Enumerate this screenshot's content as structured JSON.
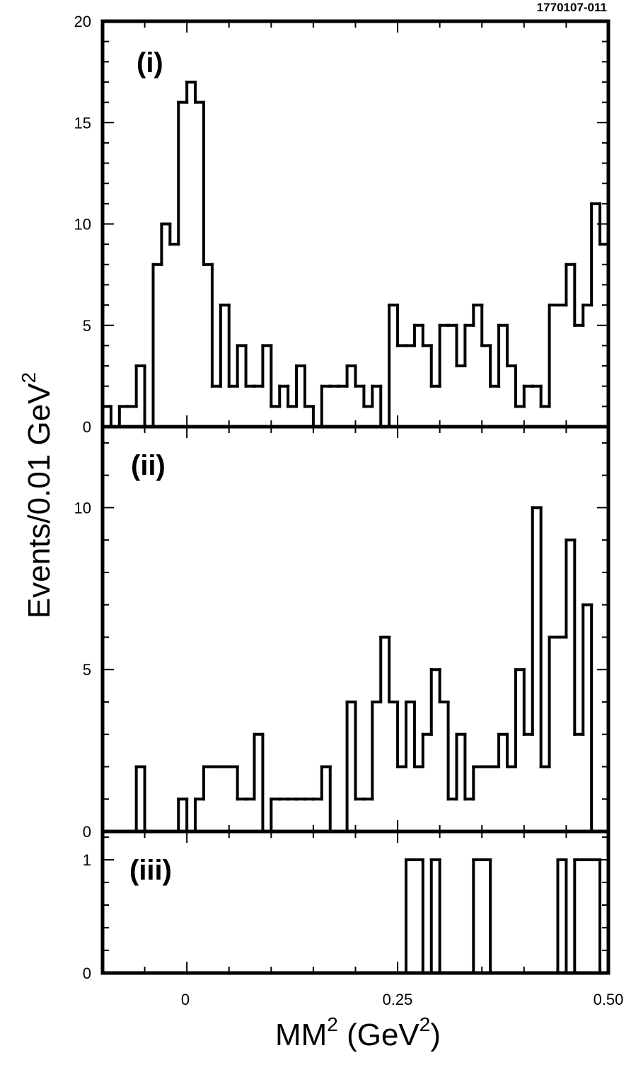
{
  "figure_id": "1770107-011",
  "chart_data": [
    {
      "type": "histogram",
      "panel_label": "(i)",
      "xlim": [
        -0.1,
        0.5
      ],
      "ylim": [
        0,
        20
      ],
      "bin_width": 0.01,
      "bin_edges_start": -0.1,
      "y_tick_labels": [
        "0",
        "5",
        "10",
        "15",
        "20"
      ],
      "y_ticks": [
        0,
        5,
        10,
        15,
        20
      ],
      "values": [
        1,
        0,
        1,
        1,
        3,
        0,
        8,
        10,
        9,
        16,
        17,
        16,
        8,
        2,
        6,
        2,
        4,
        2,
        2,
        4,
        1,
        2,
        1,
        3,
        1,
        0,
        2,
        2,
        2,
        3,
        2,
        1,
        2,
        0,
        6,
        4,
        4,
        5,
        4,
        2,
        5,
        5,
        3,
        5,
        6,
        4,
        2,
        5,
        3,
        1,
        2,
        2,
        1,
        6,
        6,
        8,
        5,
        6,
        11,
        9
      ]
    },
    {
      "type": "histogram",
      "panel_label": "(ii)",
      "xlim": [
        -0.1,
        0.5
      ],
      "ylim": [
        0,
        12.5
      ],
      "bin_width": 0.01,
      "bin_edges_start": -0.1,
      "y_tick_labels": [
        "0",
        "5",
        "10"
      ],
      "y_ticks": [
        0,
        5,
        10
      ],
      "values": [
        0,
        0,
        0,
        0,
        2,
        0,
        0,
        0,
        0,
        1,
        0,
        1,
        2,
        2,
        2,
        2,
        1,
        1,
        3,
        0,
        1,
        1,
        1,
        1,
        1,
        1,
        2,
        0,
        0,
        4,
        1,
        1,
        4,
        6,
        4,
        2,
        4,
        2,
        3,
        5,
        4,
        1,
        3,
        1,
        2,
        2,
        2,
        3,
        2,
        5,
        3,
        10,
        2,
        6,
        6,
        9,
        3,
        7,
        0,
        0
      ]
    },
    {
      "type": "histogram",
      "panel_label": "(iii)",
      "xlim": [
        -0.1,
        0.5
      ],
      "ylim": [
        0,
        1.25
      ],
      "bin_width": 0.01,
      "bin_edges_start": -0.1,
      "y_tick_labels": [
        "0",
        "1"
      ],
      "y_ticks": [
        0,
        1
      ],
      "x_tick_labels": [
        "0",
        "0.25",
        "0.50"
      ],
      "x_ticks": [
        0,
        0.25,
        0.5
      ],
      "values": [
        0,
        0,
        0,
        0,
        0,
        0,
        0,
        0,
        0,
        0,
        0,
        0,
        0,
        0,
        0,
        0,
        0,
        0,
        0,
        0,
        0,
        0,
        0,
        0,
        0,
        0,
        0,
        0,
        0,
        0,
        0,
        0,
        0,
        0,
        0,
        0,
        1,
        1,
        0,
        1,
        0,
        0,
        0,
        0,
        1,
        1,
        0,
        0,
        0,
        0,
        0,
        0,
        0,
        0,
        1,
        0,
        1,
        1,
        1,
        0
      ]
    }
  ],
  "axes": {
    "ylabel_main": "Events/0.01 GeV",
    "ylabel_sup": "2",
    "xlabel_main": "MM",
    "xlabel_sup1": "2",
    "xlabel_mid": " (GeV",
    "xlabel_sup2": "2",
    "xlabel_end": ")"
  }
}
